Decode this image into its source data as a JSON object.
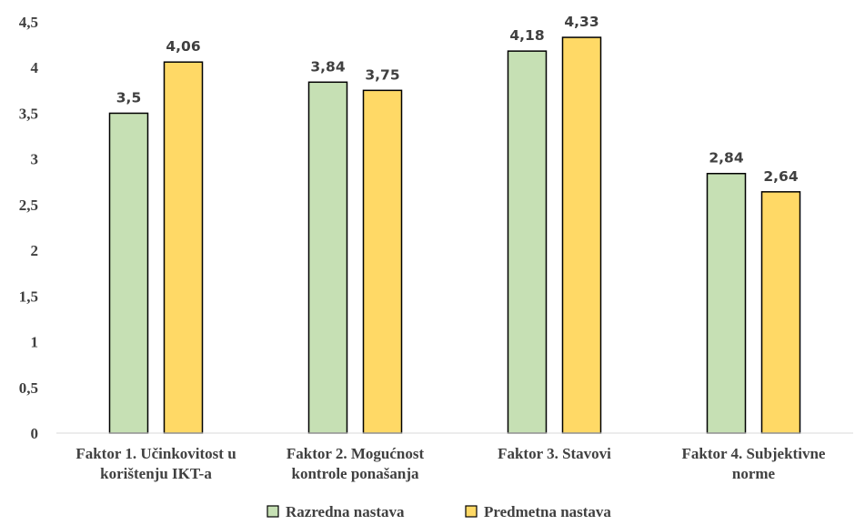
{
  "chart_data": {
    "type": "bar",
    "categories": [
      [
        "Faktor 1. Učinkovitost u",
        "korištenju IKT-a"
      ],
      [
        "Faktor 2. Mogućnost",
        "kontrole ponašanja"
      ],
      [
        "Faktor 3. Stavovi"
      ],
      [
        "Faktor 4. Subjektivne",
        "norme"
      ]
    ],
    "series": [
      {
        "name": "Razredna nastava",
        "color": "#c6e0b4",
        "values": [
          3.5,
          3.84,
          4.18,
          2.84
        ],
        "labels": [
          "3,5",
          "3,84",
          "4,18",
          "2,84"
        ]
      },
      {
        "name": "Predmetna nastava",
        "color": "#ffd966",
        "values": [
          4.06,
          3.75,
          4.33,
          2.64
        ],
        "labels": [
          "4,06",
          "3,75",
          "4,33",
          "2,64"
        ]
      }
    ],
    "yticks": [
      "0",
      "0,5",
      "1",
      "1,5",
      "2",
      "2,5",
      "3",
      "3,5",
      "4",
      "4,5"
    ],
    "ylim": [
      0,
      4.5
    ],
    "grid": false,
    "legend_position": "bottom",
    "title": "",
    "xlabel": "",
    "ylabel": ""
  }
}
